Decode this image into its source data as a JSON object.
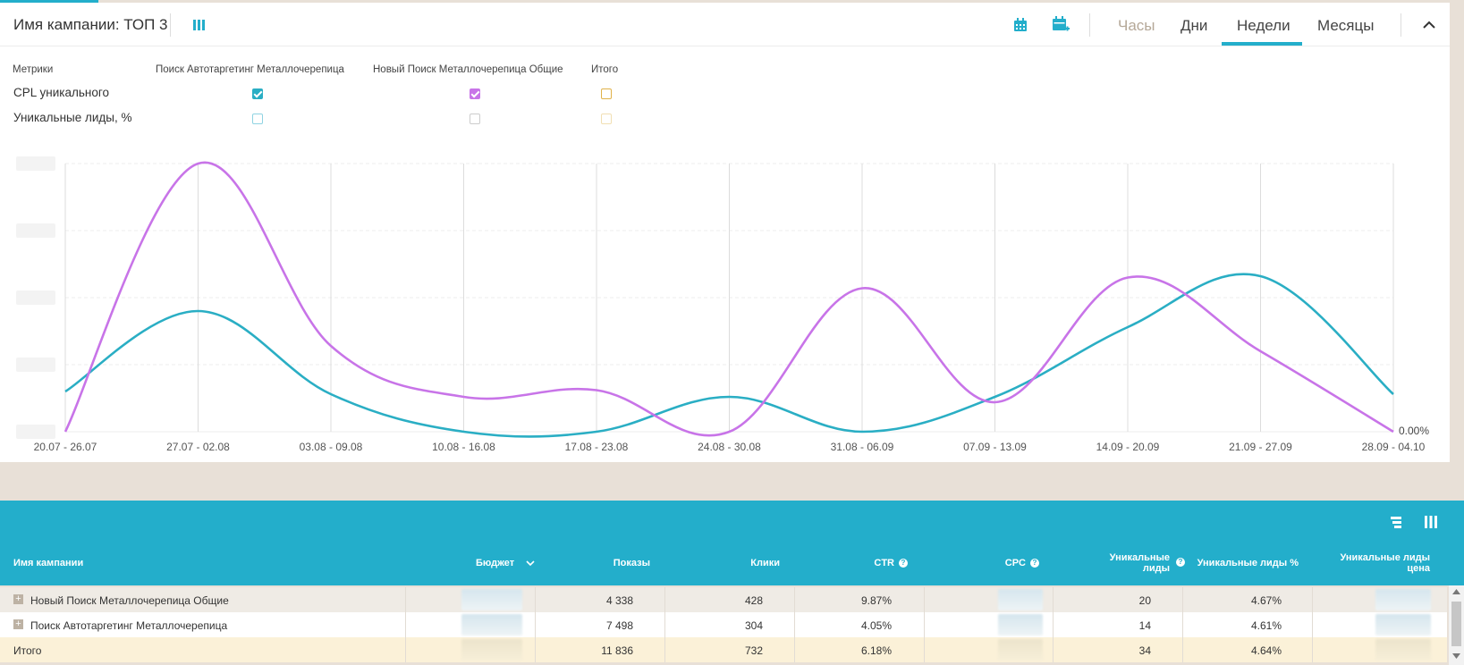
{
  "header": {
    "campaign_title": "Имя кампании: ТОП 3",
    "tabs": [
      {
        "label": "Часы",
        "state": "disabled"
      },
      {
        "label": "Дни",
        "state": "normal"
      },
      {
        "label": "Недели",
        "state": "active"
      },
      {
        "label": "Месяцы",
        "state": "normal"
      }
    ],
    "icons": [
      "columns-icon",
      "calendar-icon",
      "calendar-add-icon",
      "chevron-up-icon"
    ]
  },
  "metrics": {
    "header": "Метрики",
    "columns": [
      "Поиск Автотаргетинг Металлочерепица",
      "Новый Поиск Металлочерепица Общие",
      "Итого"
    ],
    "rows": [
      {
        "label": "CPL уникального",
        "checked": [
          true,
          true,
          false
        ]
      },
      {
        "label": "Уникальные лиды, %",
        "checked": [
          false,
          false,
          false
        ]
      }
    ]
  },
  "colors": {
    "accent": "#23aecb",
    "series1": "#2aaec4",
    "series2": "#c874e8",
    "total": "#e0b24a"
  },
  "chart_data": {
    "type": "line",
    "categories": [
      "20.07 - 26.07",
      "27.07 - 02.08",
      "03.08 - 09.08",
      "10.08 - 16.08",
      "17.08 - 23.08",
      "24.08 - 30.08",
      "31.08 - 06.09",
      "07.09 - 13.09",
      "14.09 - 20.09",
      "21.09 - 27.09",
      "28.09 - 04.10"
    ],
    "series": [
      {
        "name": "Поиск Автотаргетинг Металлочерепица",
        "color": "#2aaec4",
        "values": [
          0.15,
          0.45,
          0.14,
          0.0,
          0.0,
          0.13,
          0.0,
          0.13,
          0.39,
          0.58,
          0.14
        ]
      },
      {
        "name": "Новый Поиск Металлочерепица Общие",
        "color": "#c874e8",
        "values": [
          0.0,
          1.0,
          0.32,
          0.13,
          0.155,
          0.0,
          0.535,
          0.11,
          0.575,
          0.3,
          0.0
        ]
      }
    ],
    "right_label": "0.00%",
    "ylim": [
      0,
      1
    ],
    "grid": true
  },
  "table": {
    "columns": [
      {
        "label": "Имя кампании"
      },
      {
        "label": "Бюджет"
      },
      {
        "label": "Показы"
      },
      {
        "label": "Клики"
      },
      {
        "label": "CTR"
      },
      {
        "label": "CPC"
      },
      {
        "label": "Уникальные лиды"
      },
      {
        "label": "Уникальные лиды %"
      },
      {
        "label": "Уникальные лиды цена"
      }
    ],
    "rows": [
      {
        "name": "Новый Поиск Металлочерепица Общие",
        "shows": "4 338",
        "clicks": "428",
        "ctr": "9.87%",
        "leads": "20",
        "leads_pct": "4.67%"
      },
      {
        "name": "Поиск Автотаргетинг Металлочерепица",
        "shows": "7 498",
        "clicks": "304",
        "ctr": "4.05%",
        "leads": "14",
        "leads_pct": "4.61%"
      }
    ],
    "total": {
      "name": "Итого",
      "shows": "11 836",
      "clicks": "732",
      "ctr": "6.18%",
      "leads": "34",
      "leads_pct": "4.64%"
    }
  }
}
